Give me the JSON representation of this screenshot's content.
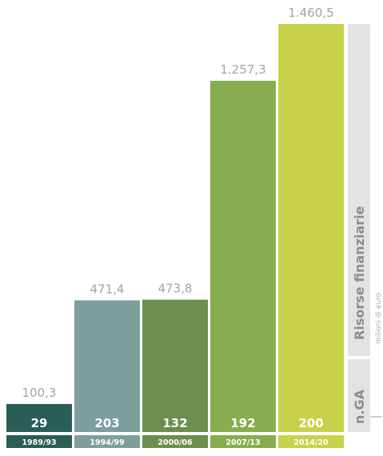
{
  "chart_data": {
    "type": "bar",
    "categories": [
      "1989/93",
      "1994/99",
      "2000/06",
      "2007/13",
      "2014/20"
    ],
    "series": [
      {
        "name": "Risorse finanziarie",
        "values": [
          100.3,
          471.4,
          473.8,
          1257.3,
          1460.5
        ],
        "labels": [
          "100,3",
          "471,4",
          "473,8",
          "1.257,3",
          "1.460,5"
        ]
      },
      {
        "name": "n.GA",
        "values": [
          29,
          203,
          132,
          192,
          200
        ],
        "labels": [
          "29",
          "203",
          "132",
          "192",
          "200"
        ]
      }
    ],
    "colors": [
      "#2b5d57",
      "#7e9e9e",
      "#6b8f4e",
      "#88ad4f",
      "#c7d24a"
    ],
    "side_labels": {
      "resources": "Risorse finanziarie",
      "unit": "milioni di euro",
      "groups": "n.GA"
    },
    "grid": false,
    "legend": "none"
  }
}
